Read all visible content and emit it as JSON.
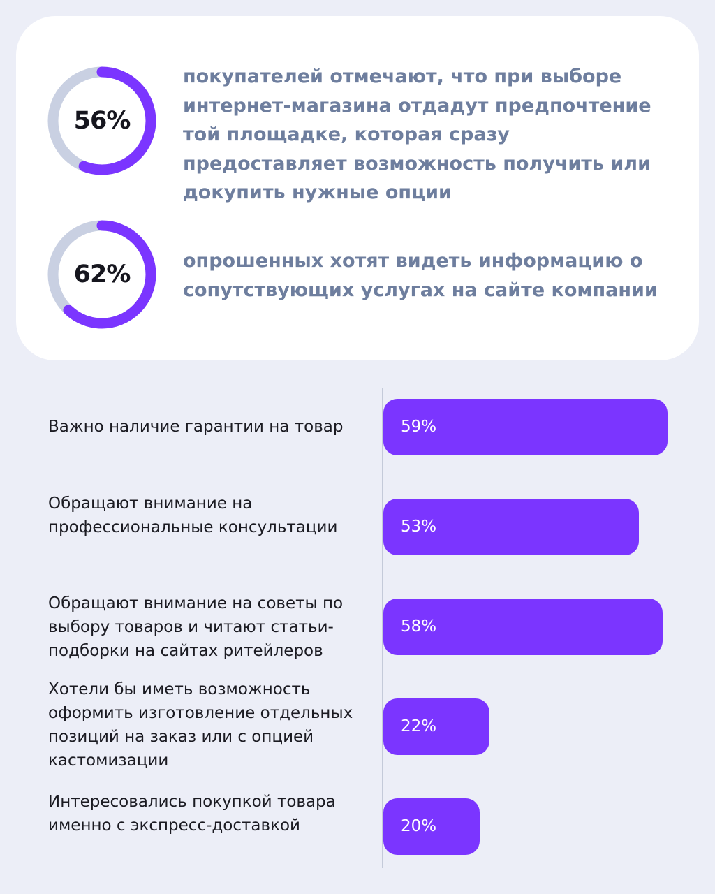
{
  "stats": [
    {
      "value": "56%",
      "percent": 56,
      "text": "покупателей отмечают, что при выборе интернет-магазина отдадут предпочтение той площадке, которая сразу предоставляет возможность получить или докупить нужные опции"
    },
    {
      "value": "62%",
      "percent": 62,
      "text": "опрошенных хотят видеть информацию о сопутствующих услугах на сайте компании"
    }
  ],
  "colors": {
    "background": "#ECEEF7",
    "card": "#FFFFFF",
    "accent": "#7B35FF",
    "track": "#C9D0E2",
    "stat_text": "#6E7E9E",
    "label_text": "#1B1B22"
  },
  "chart_data": {
    "type": "bar",
    "orientation": "horizontal",
    "categories": [
      "Важно наличие гарантии на товар",
      "Обращают внимание на профессиональные консультации",
      "Обращают внимание на советы по выбору товаров и читают статьи-подборки на сайтах ритейлеров",
      "Хотели бы иметь возможность оформить изготовление отдельных позиций на заказ или с опцией кастомизации",
      "Интересовались покупкой товара именно с экспресс-доставкой"
    ],
    "values": [
      59,
      53,
      58,
      22,
      20
    ],
    "value_labels": [
      "59%",
      "53%",
      "58%",
      "22%",
      "20%"
    ],
    "unit": "%",
    "xlim": [
      0,
      59
    ],
    "grid": false
  }
}
